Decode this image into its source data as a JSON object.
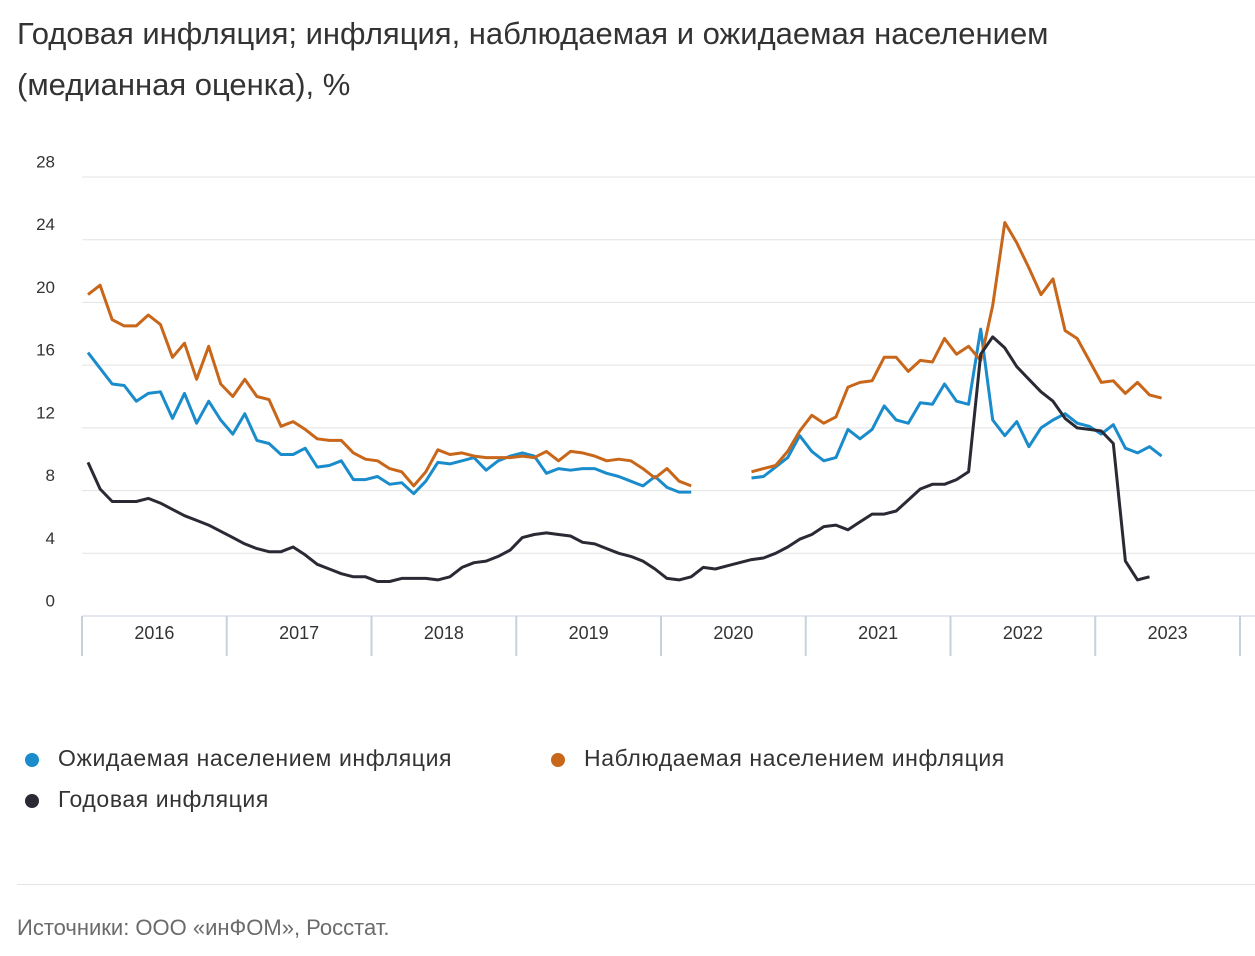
{
  "chart_data": {
    "type": "line",
    "title": "Годовая инфляция; инфляция, наблюдаемая и ожидаемая населением (медианная оценка), %",
    "source": "Источники: ООО «инФОМ», Росстат.",
    "categories": [
      null,
      null,
      null,
      null,
      null,
      null,
      "2016",
      null,
      null,
      null,
      null,
      null,
      null,
      null,
      null,
      null,
      null,
      null,
      "2017",
      null,
      null,
      null,
      null,
      null,
      null,
      null,
      null,
      null,
      null,
      null,
      "2018",
      null,
      null,
      null,
      null,
      null,
      null,
      null,
      null,
      null,
      null,
      null,
      "2019",
      null,
      null,
      null,
      null,
      null,
      null,
      null,
      null,
      null,
      null,
      null,
      "2020",
      null,
      null,
      null,
      null,
      null,
      null,
      null,
      null,
      null,
      null,
      null,
      "2021",
      null,
      null,
      null,
      null,
      null,
      null,
      null,
      null,
      null,
      null,
      null,
      "2022",
      null,
      null,
      null,
      null,
      null,
      null,
      null,
      null,
      null,
      null,
      null,
      "2023",
      null,
      null,
      null,
      null,
      null
    ],
    "series": [
      {
        "name": "Ожидаемая населением инфляция",
        "color": "#1a8ccc",
        "values": [
          16.8,
          15.8,
          14.8,
          14.7,
          13.7,
          14.2,
          14.3,
          12.6,
          14.2,
          12.3,
          13.7,
          12.5,
          11.6,
          12.9,
          11.2,
          11.0,
          10.3,
          10.3,
          10.7,
          9.5,
          9.6,
          9.9,
          8.7,
          8.7,
          8.9,
          8.4,
          8.5,
          7.8,
          8.6,
          9.8,
          9.7,
          9.9,
          10.1,
          9.3,
          9.9,
          10.2,
          10.4,
          10.2,
          9.1,
          9.4,
          9.3,
          9.4,
          9.4,
          9.1,
          8.9,
          8.6,
          8.3,
          8.9,
          8.2,
          7.9,
          7.9,
          null,
          null,
          null,
          null,
          8.8,
          8.9,
          9.5,
          10.1,
          11.5,
          10.5,
          9.9,
          10.1,
          11.9,
          11.3,
          11.9,
          13.4,
          12.5,
          12.3,
          13.6,
          13.5,
          14.8,
          13.7,
          13.5,
          18.3,
          12.5,
          11.5,
          12.4,
          10.8,
          12.0,
          12.5,
          12.9,
          12.3,
          12.1,
          11.6,
          12.2,
          10.7,
          10.4,
          10.8,
          10.2,
          null,
          null,
          null,
          null,
          null,
          null
        ]
      },
      {
        "name": "Наблюдаемая населением инфляция",
        "color": "#c8661a",
        "values": [
          20.5,
          21.1,
          18.9,
          18.5,
          18.5,
          19.2,
          18.6,
          16.5,
          17.4,
          15.1,
          17.2,
          14.8,
          14.0,
          15.1,
          14.0,
          13.8,
          12.1,
          12.4,
          11.9,
          11.3,
          11.2,
          11.2,
          10.4,
          10.0,
          9.9,
          9.4,
          9.2,
          8.3,
          9.2,
          10.6,
          10.3,
          10.4,
          10.2,
          10.1,
          10.1,
          10.1,
          10.2,
          10.1,
          10.5,
          9.9,
          10.5,
          10.4,
          10.2,
          9.9,
          10.0,
          9.9,
          9.4,
          8.8,
          9.4,
          8.6,
          8.3,
          null,
          null,
          null,
          null,
          9.2,
          9.4,
          9.6,
          10.5,
          11.8,
          12.8,
          12.3,
          12.7,
          14.6,
          14.9,
          15.0,
          16.5,
          16.5,
          15.6,
          16.3,
          16.2,
          17.7,
          16.7,
          17.2,
          16.3,
          19.8,
          25.1,
          23.8,
          22.2,
          20.5,
          21.5,
          18.2,
          17.7,
          16.3,
          14.9,
          15.0,
          14.2,
          14.9,
          14.1,
          13.9,
          null,
          null,
          null,
          null,
          null,
          null
        ]
      },
      {
        "name": "Годовая инфляция",
        "color": "#2a2a35",
        "values": [
          9.8,
          8.1,
          7.3,
          7.3,
          7.3,
          7.5,
          7.2,
          6.8,
          6.4,
          6.1,
          5.8,
          5.4,
          5.0,
          4.6,
          4.3,
          4.1,
          4.1,
          4.4,
          3.9,
          3.3,
          3.0,
          2.7,
          2.5,
          2.5,
          2.2,
          2.2,
          2.4,
          2.4,
          2.4,
          2.3,
          2.5,
          3.1,
          3.4,
          3.5,
          3.8,
          4.2,
          5.0,
          5.2,
          5.3,
          5.2,
          5.1,
          4.7,
          4.6,
          4.3,
          4.0,
          3.8,
          3.5,
          3.0,
          2.4,
          2.3,
          2.5,
          3.1,
          3.0,
          3.2,
          3.4,
          3.6,
          3.7,
          4.0,
          4.4,
          4.9,
          5.2,
          5.7,
          5.8,
          5.5,
          6.0,
          6.5,
          6.5,
          6.7,
          7.4,
          8.1,
          8.4,
          8.4,
          8.7,
          9.2,
          16.7,
          17.8,
          17.1,
          15.9,
          15.1,
          14.3,
          13.7,
          12.6,
          12.0,
          11.9,
          11.8,
          11.0,
          3.5,
          2.3,
          2.5,
          null,
          null,
          null,
          null,
          null,
          null,
          null
        ]
      }
    ],
    "ylim": [
      0,
      28
    ],
    "yticks": [
      0,
      4,
      8,
      12,
      16,
      20,
      24,
      28
    ],
    "grid": true
  }
}
